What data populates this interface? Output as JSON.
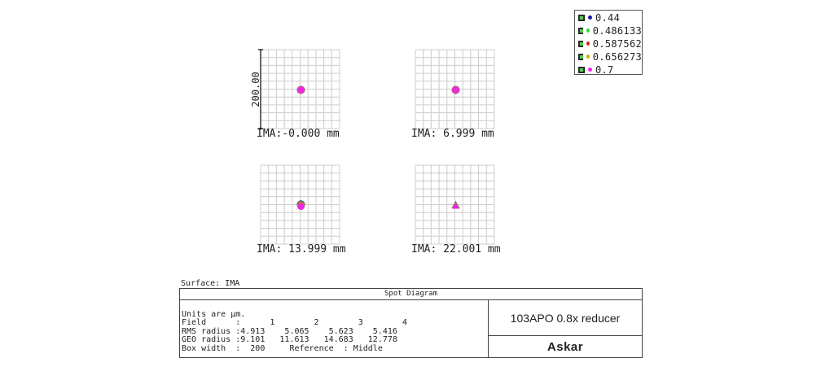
{
  "chart_data": {
    "type": "scatter",
    "title": "Spot Diagram",
    "surface_label": "Surface: IMA",
    "scale_bar_label": "200.00",
    "box_width": 200,
    "legend": [
      {
        "label": "0.44",
        "color": "#1a1aa8"
      },
      {
        "label": "0.486133",
        "color": "#33dd33"
      },
      {
        "label": "0.587562",
        "color": "#dd2222"
      },
      {
        "label": "0.656273",
        "color": "#c8b400"
      },
      {
        "label": "0.7",
        "color": "#ee22ee"
      }
    ],
    "fields": [
      {
        "label": "IMA:-0.000 mm",
        "spot_shape": "circle"
      },
      {
        "label": "IMA: 6.999 mm",
        "spot_shape": "circle"
      },
      {
        "label": "IMA: 13.999 mm",
        "spot_shape": "circle"
      },
      {
        "label": "IMA: 22.001 mm",
        "spot_shape": "triangle"
      }
    ]
  },
  "info": {
    "lines": [
      "Units are µm.",
      "Field      :      1        2        3        4",
      "RMS radius :4.913    5.065    5.623    5.416",
      "GEO radius :9.101   11.613   14.683   12.778",
      "Box width  :  200     Reference  : Middle"
    ]
  },
  "lens_name": "103APO 0.8x reducer",
  "brand": "Askar"
}
